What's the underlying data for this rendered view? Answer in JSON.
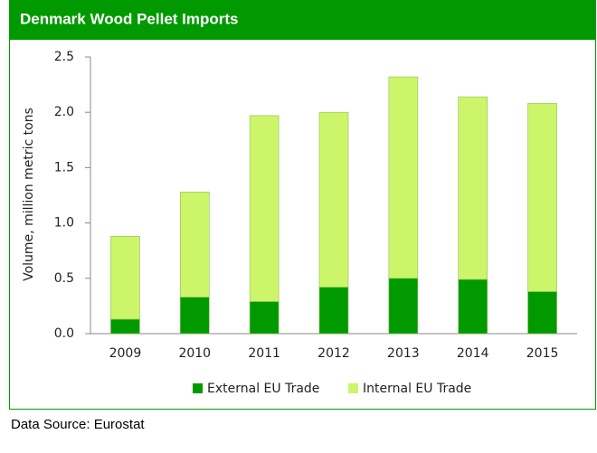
{
  "chart_data": {
    "type": "stacked_bar",
    "title": "Denmark Wood Pellet Imports",
    "y_label": "Volume, million metric tons",
    "categories": [
      "2009",
      "2010",
      "2011",
      "2012",
      "2013",
      "2014",
      "2015"
    ],
    "series": [
      {
        "name": "External EU Trade",
        "color": "#009a00",
        "values": [
          0.13,
          0.33,
          0.29,
          0.42,
          0.5,
          0.49,
          0.38
        ]
      },
      {
        "name": "Internal EU Trade",
        "color": "#ccf56a",
        "values": [
          0.75,
          0.95,
          1.68,
          1.58,
          1.82,
          1.65,
          1.7
        ]
      }
    ],
    "ylim": [
      0,
      2.5
    ],
    "yticks": [
      {
        "value": 0,
        "label": "0.0"
      },
      {
        "value": 0.5,
        "label": "0.5"
      },
      {
        "value": 1,
        "label": "1.0"
      },
      {
        "value": 1.5,
        "label": "1.5"
      },
      {
        "value": 2,
        "label": "2.0"
      },
      {
        "value": 2.5,
        "label": "2.5"
      }
    ],
    "source": "Data Source: Eurostat"
  }
}
